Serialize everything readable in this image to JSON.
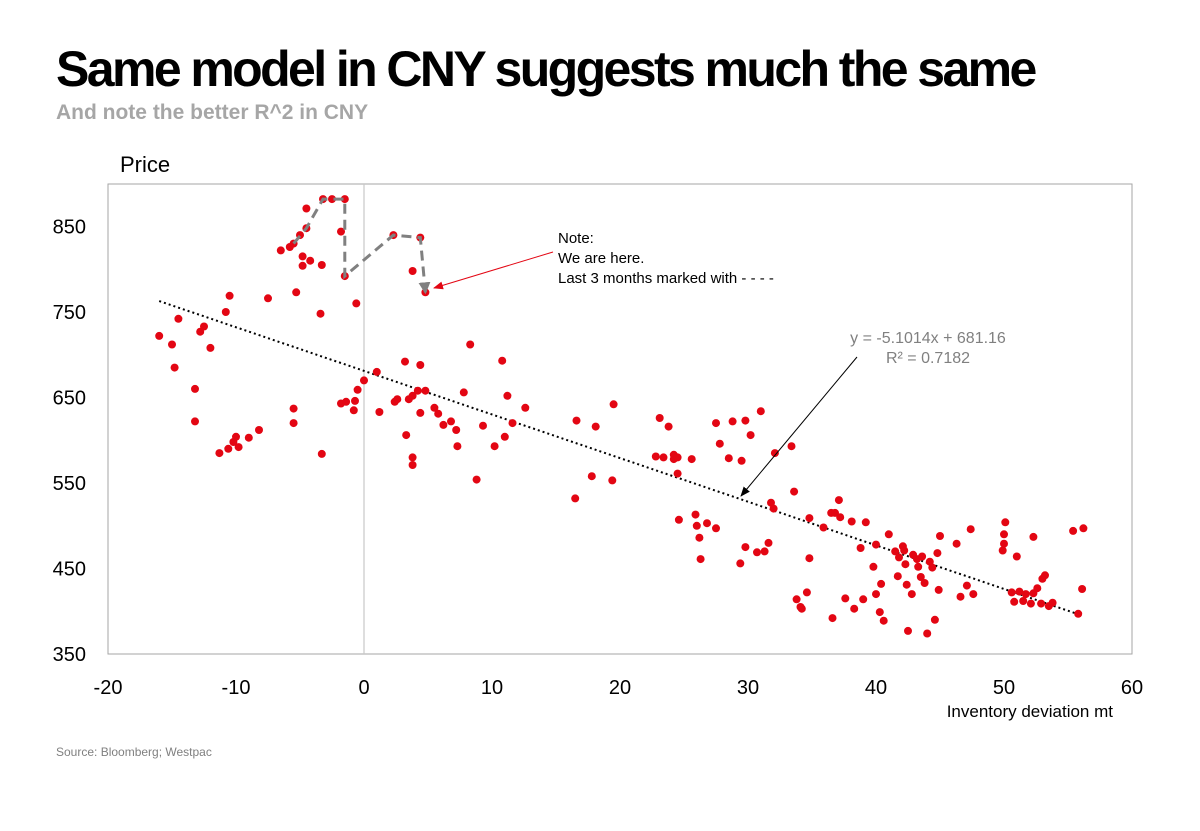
{
  "header": {
    "title": "Same model in CNY suggests much the same",
    "subtitle": "And note the better R^2 in CNY"
  },
  "footer": {
    "source": "Source:  Bloomberg;  Westpac"
  },
  "colors": {
    "points": "#e30613",
    "trendline": "#000000",
    "path": "#808080",
    "zero_line": "#c8c8c8",
    "equation": "#808080"
  },
  "chart_data": {
    "type": "scatter",
    "xlabel": "Inventory deviation mt",
    "ylabel": "Price",
    "xlim": [
      -20,
      60
    ],
    "ylim": [
      350,
      900
    ],
    "xticks": [
      -20,
      -10,
      0,
      10,
      20,
      30,
      40,
      50,
      60
    ],
    "yticks": [
      350,
      450,
      550,
      650,
      750,
      850
    ],
    "grid": false,
    "legend": "none",
    "trendline": {
      "slope": -5.1014,
      "intercept": 681.16,
      "x_range": [
        -16,
        56
      ],
      "style": "dotted",
      "equation": "y = -5.1014x + 681.16",
      "r2": "R² = 0.7182"
    },
    "annotation": {
      "lines": [
        "Note:",
        "We are here.",
        "Last 3 months marked with - - - -"
      ]
    },
    "last_three_months": [
      [
        2.3,
        840
      ],
      [
        4.4,
        837
      ],
      [
        4.8,
        773
      ]
    ],
    "recent_path": [
      [
        -5.5,
        830
      ],
      [
        -4.5,
        848
      ],
      [
        -3.2,
        882
      ],
      [
        -1.5,
        882
      ],
      [
        -1.5,
        792
      ],
      [
        2.3,
        840
      ],
      [
        4.4,
        837
      ],
      [
        4.8,
        773
      ]
    ],
    "points": [
      [
        -16,
        722
      ],
      [
        -15,
        712
      ],
      [
        -14.5,
        742
      ],
      [
        -14.8,
        685
      ],
      [
        -13.2,
        660
      ],
      [
        -13.2,
        622
      ],
      [
        -12.8,
        727
      ],
      [
        -12.5,
        733
      ],
      [
        -12,
        708
      ],
      [
        -11.3,
        585
      ],
      [
        -10.6,
        590
      ],
      [
        -10.2,
        598
      ],
      [
        -10,
        604
      ],
      [
        -9.8,
        592
      ],
      [
        -9,
        603
      ],
      [
        -8.2,
        612
      ],
      [
        -10.8,
        750
      ],
      [
        -10.5,
        769
      ],
      [
        -7.5,
        766
      ],
      [
        -6.5,
        822
      ],
      [
        -5.8,
        826
      ],
      [
        -5.5,
        830
      ],
      [
        -5.5,
        637
      ],
      [
        -5.5,
        620
      ],
      [
        -5.3,
        773
      ],
      [
        -5,
        840
      ],
      [
        -4.8,
        815
      ],
      [
        -4.8,
        804
      ],
      [
        -4.5,
        848
      ],
      [
        -4.5,
        871
      ],
      [
        -4.2,
        810
      ],
      [
        -3.4,
        748
      ],
      [
        -3.3,
        805
      ],
      [
        -3.2,
        882
      ],
      [
        -3.3,
        584
      ],
      [
        -2.5,
        882
      ],
      [
        -1.8,
        844
      ],
      [
        -1.5,
        882
      ],
      [
        -1.5,
        792
      ],
      [
        -1.8,
        643
      ],
      [
        -1.4,
        645
      ],
      [
        -0.8,
        635
      ],
      [
        -0.7,
        646
      ],
      [
        -0.5,
        659
      ],
      [
        -0.6,
        760
      ],
      [
        0,
        670
      ],
      [
        1,
        680
      ],
      [
        1.2,
        633
      ],
      [
        2.3,
        840
      ],
      [
        2.4,
        645
      ],
      [
        2.6,
        648
      ],
      [
        3.2,
        692
      ],
      [
        3.3,
        606
      ],
      [
        3.5,
        648
      ],
      [
        3.8,
        652
      ],
      [
        3.8,
        580
      ],
      [
        3.8,
        571
      ],
      [
        3.8,
        798
      ],
      [
        4.2,
        658
      ],
      [
        4.4,
        632
      ],
      [
        4.4,
        837
      ],
      [
        4.4,
        688
      ],
      [
        4.8,
        773
      ],
      [
        4.8,
        658
      ],
      [
        5.5,
        638
      ],
      [
        5.8,
        631
      ],
      [
        6.2,
        618
      ],
      [
        6.8,
        622
      ],
      [
        7.2,
        612
      ],
      [
        7.3,
        593
      ],
      [
        7.8,
        656
      ],
      [
        8.3,
        712
      ],
      [
        8.8,
        554
      ],
      [
        9.3,
        617
      ],
      [
        10.2,
        593
      ],
      [
        10.8,
        693
      ],
      [
        11,
        604
      ],
      [
        11.2,
        652
      ],
      [
        11.6,
        620
      ],
      [
        12.6,
        638
      ],
      [
        16.5,
        532
      ],
      [
        16.6,
        623
      ],
      [
        17.8,
        558
      ],
      [
        18.1,
        616
      ],
      [
        19.4,
        553
      ],
      [
        19.5,
        642
      ],
      [
        22.8,
        581
      ],
      [
        23.1,
        626
      ],
      [
        23.4,
        580
      ],
      [
        23.8,
        616
      ],
      [
        24.2,
        578
      ],
      [
        24.2,
        583
      ],
      [
        24.5,
        580
      ],
      [
        24.5,
        561
      ],
      [
        24.6,
        507
      ],
      [
        25.6,
        578
      ],
      [
        25.9,
        513
      ],
      [
        26,
        500
      ],
      [
        26.2,
        486
      ],
      [
        26.3,
        461
      ],
      [
        26.8,
        503
      ],
      [
        27.5,
        497
      ],
      [
        27.5,
        620
      ],
      [
        27.8,
        596
      ],
      [
        28.5,
        579
      ],
      [
        28.8,
        622
      ],
      [
        29.4,
        456
      ],
      [
        29.5,
        576
      ],
      [
        29.8,
        623
      ],
      [
        29.8,
        475
      ],
      [
        30.2,
        606
      ],
      [
        30.7,
        469
      ],
      [
        31,
        634
      ],
      [
        31.3,
        470
      ],
      [
        31.6,
        480
      ],
      [
        31.8,
        527
      ],
      [
        32,
        520
      ],
      [
        32.1,
        585
      ],
      [
        33.4,
        593
      ],
      [
        33.6,
        540
      ],
      [
        33.8,
        414
      ],
      [
        34.1,
        405
      ],
      [
        34.2,
        403
      ],
      [
        34.6,
        422
      ],
      [
        34.8,
        462
      ],
      [
        34.8,
        509
      ],
      [
        35.9,
        498
      ],
      [
        36.5,
        515
      ],
      [
        36.6,
        392
      ],
      [
        36.8,
        515
      ],
      [
        37.1,
        530
      ],
      [
        37.2,
        510
      ],
      [
        37.6,
        415
      ],
      [
        38.1,
        505
      ],
      [
        38.3,
        403
      ],
      [
        38.8,
        474
      ],
      [
        39,
        414
      ],
      [
        39.2,
        504
      ],
      [
        39.8,
        452
      ],
      [
        40,
        478
      ],
      [
        40,
        420
      ],
      [
        40.3,
        399
      ],
      [
        40.4,
        432
      ],
      [
        40.6,
        389
      ],
      [
        41,
        490
      ],
      [
        41.5,
        470
      ],
      [
        41.7,
        441
      ],
      [
        41.8,
        463
      ],
      [
        42.1,
        476
      ],
      [
        42.2,
        471
      ],
      [
        42.3,
        455
      ],
      [
        42.4,
        431
      ],
      [
        42.5,
        377
      ],
      [
        42.8,
        420
      ],
      [
        42.9,
        466
      ],
      [
        43.2,
        461
      ],
      [
        43.3,
        452
      ],
      [
        43.5,
        440
      ],
      [
        43.6,
        464
      ],
      [
        43.8,
        433
      ],
      [
        44,
        374
      ],
      [
        44.2,
        458
      ],
      [
        44.4,
        451
      ],
      [
        44.6,
        390
      ],
      [
        44.8,
        468
      ],
      [
        44.9,
        425
      ],
      [
        45,
        488
      ],
      [
        46.3,
        479
      ],
      [
        46.6,
        417
      ],
      [
        47.1,
        430
      ],
      [
        47.4,
        496
      ],
      [
        47.6,
        420
      ],
      [
        49.9,
        471
      ],
      [
        50,
        479
      ],
      [
        50,
        490
      ],
      [
        50.1,
        504
      ],
      [
        50.6,
        422
      ],
      [
        50.8,
        411
      ],
      [
        51,
        464
      ],
      [
        51.2,
        423
      ],
      [
        51.5,
        412
      ],
      [
        51.7,
        420
      ],
      [
        52.1,
        409
      ],
      [
        52.3,
        421
      ],
      [
        52.3,
        487
      ],
      [
        52.6,
        427
      ],
      [
        52.9,
        409
      ],
      [
        53,
        438
      ],
      [
        53.2,
        442
      ],
      [
        53.5,
        406
      ],
      [
        53.8,
        410
      ],
      [
        55.4,
        494
      ],
      [
        55.8,
        397
      ],
      [
        56.1,
        426
      ],
      [
        56.2,
        497
      ]
    ]
  }
}
